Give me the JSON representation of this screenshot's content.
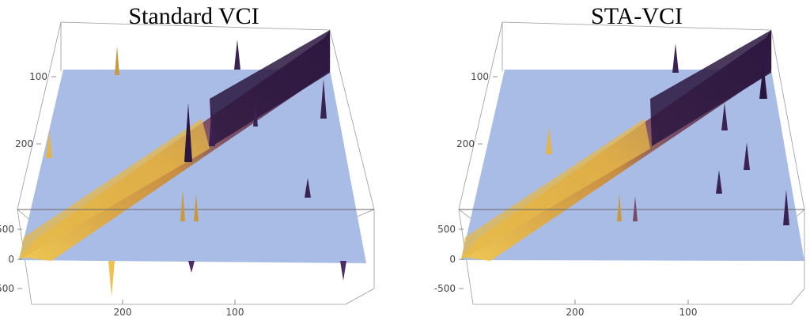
{
  "chart_data": [
    {
      "type": "surface",
      "title": "Standard VCI",
      "z_ticks": [
        "500",
        "0",
        "-500"
      ],
      "y_ticks": [
        "100",
        "200"
      ],
      "x_ticks": [
        "200",
        "100"
      ],
      "zlim": [
        -600,
        700
      ],
      "grid": false,
      "colors": {
        "plane": "#a9bce6",
        "peak_low": "#f2c84b",
        "peak_high": "#3a1f52"
      }
    },
    {
      "type": "surface",
      "title": "STA-VCI",
      "z_ticks": [
        "500",
        "0",
        "-500"
      ],
      "y_ticks": [
        "100",
        "200"
      ],
      "x_ticks": [
        "200",
        "100"
      ],
      "zlim": [
        -600,
        700
      ],
      "grid": false,
      "colors": {
        "plane": "#a9bce6",
        "peak_low": "#f2c84b",
        "peak_high": "#3a1f52"
      }
    }
  ]
}
